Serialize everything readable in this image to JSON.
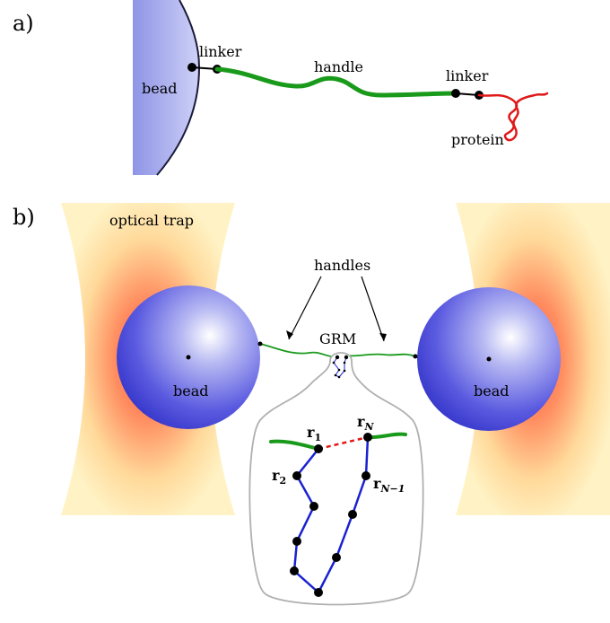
{
  "panel_a": {
    "label": "a)",
    "bead": "bead",
    "linker_left": "linker",
    "handle": "handle",
    "linker_right": "linker",
    "protein": "protein"
  },
  "panel_b": {
    "label": "b)",
    "optical_trap": "optical trap",
    "handles": "handles",
    "grm": "GRM",
    "bead_left": "bead",
    "bead_right": "bead",
    "r1": "r",
    "r1_sub": "1",
    "rN": "r",
    "rN_sub": "N",
    "r2": "r",
    "r2_sub": "2",
    "rN1": "r",
    "rN1_sub": "N−1"
  },
  "colors": {
    "bead_fill": "#b4b8f0",
    "bead_sphere": "#4a4ad8",
    "handle": "#1a9a1a",
    "protein": "#e01818",
    "chain": "#1a22d0",
    "trap_outer": "#fff2c0",
    "trap_inner": "#ff6a50",
    "inset_border": "#b0b0b0"
  }
}
